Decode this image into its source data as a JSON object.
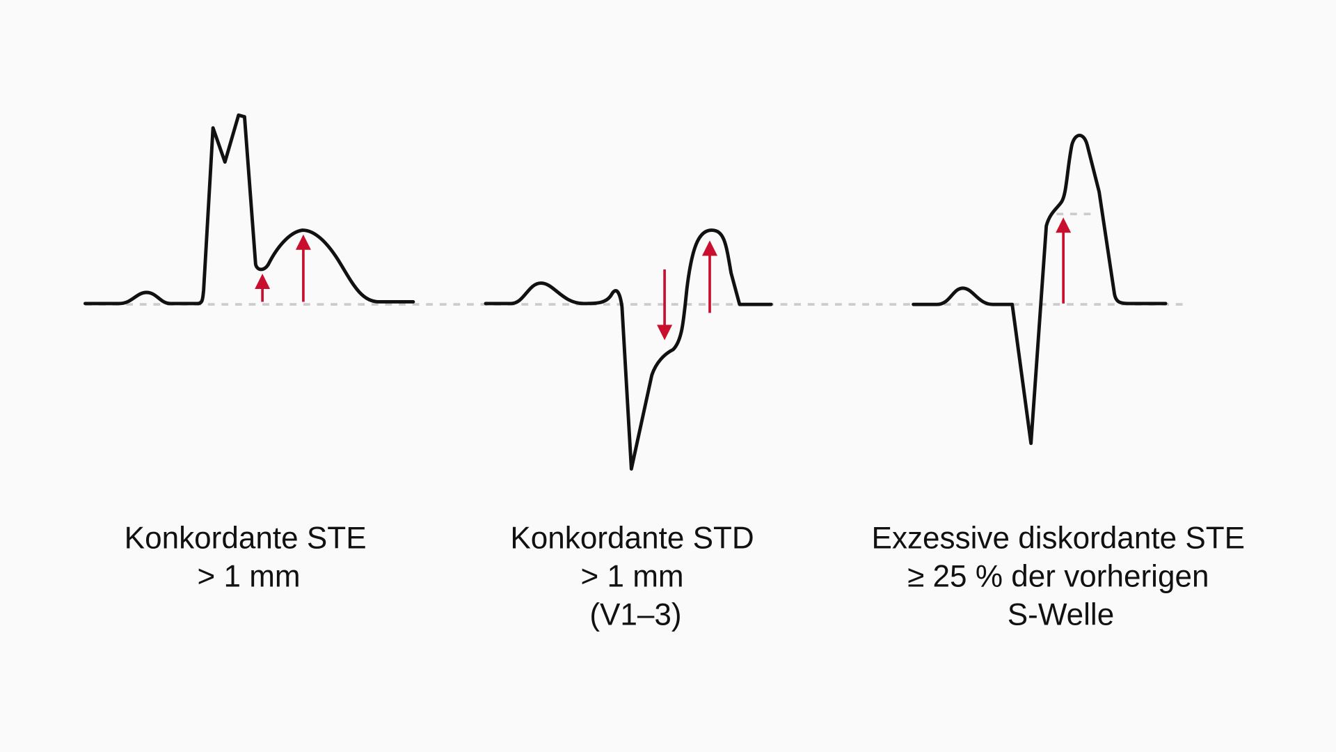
{
  "panels": [
    {
      "caption": [
        "Konkordante STE",
        "> 1 mm"
      ]
    },
    {
      "caption": [
        "Konkordante STD",
        "> 1 mm",
        "(V1–3)"
      ]
    },
    {
      "caption": [
        "Exzessive diskordante STE",
        "≥ 25 % der vorherigen",
        "S-Welle"
      ]
    }
  ]
}
